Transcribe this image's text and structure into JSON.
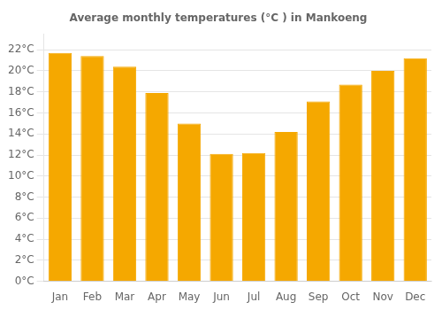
{
  "chart_data": {
    "type": "bar",
    "title": "Average monthly temperatures (°C ) in Mankoeng",
    "categories": [
      "Jan",
      "Feb",
      "Mar",
      "Apr",
      "May",
      "Jun",
      "Jul",
      "Aug",
      "Sep",
      "Oct",
      "Nov",
      "Dec"
    ],
    "values": [
      21.7,
      21.4,
      20.4,
      17.9,
      15.0,
      12.1,
      12.2,
      14.2,
      17.1,
      18.7,
      20.0,
      21.2
    ],
    "color": "#F5A800",
    "ylim": [
      0,
      23.5
    ],
    "yticks": [
      {
        "value": 0,
        "label": "0°C"
      },
      {
        "value": 2,
        "label": "2°C"
      },
      {
        "value": 4,
        "label": "4°C"
      },
      {
        "value": 6,
        "label": "6°C"
      },
      {
        "value": 8,
        "label": "8°C"
      },
      {
        "value": 10,
        "label": "10°C"
      },
      {
        "value": 12,
        "label": "12°C"
      },
      {
        "value": 14,
        "label": "14°C"
      },
      {
        "value": 16,
        "label": "16°C"
      },
      {
        "value": 18,
        "label": "18°C"
      },
      {
        "value": 20,
        "label": "20°C"
      },
      {
        "value": 22,
        "label": "22°C"
      }
    ],
    "grid": true
  }
}
